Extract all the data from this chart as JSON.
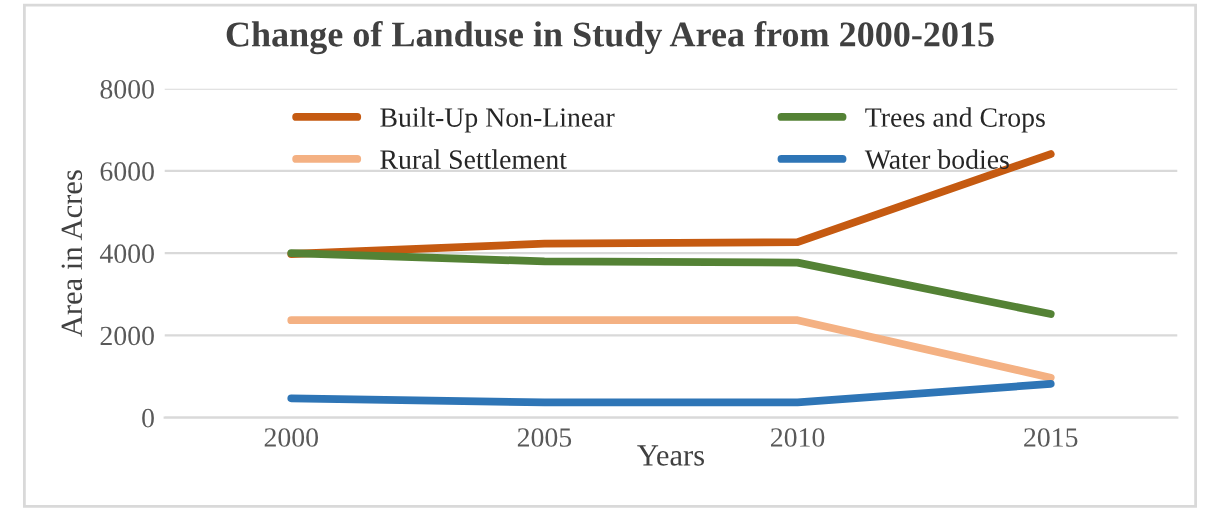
{
  "chart_data": {
    "type": "line",
    "title": "Change of Landuse in Study Area from 2000-2015",
    "xlabel": "Years",
    "ylabel": "Area in Acres",
    "categories": [
      "2000",
      "2005",
      "2010",
      "2015"
    ],
    "series": [
      {
        "name": "Built-Up Non-Linear",
        "color": "#c55a11",
        "values": [
          3980,
          4230,
          4270,
          6410
        ]
      },
      {
        "name": "Rural Settlement",
        "color": "#f4b183",
        "values": [
          2370,
          2370,
          2370,
          970
        ]
      },
      {
        "name": "Trees and Crops",
        "color": "#548235",
        "values": [
          4000,
          3800,
          3770,
          2520
        ]
      },
      {
        "name": "Water bodies",
        "color": "#2e75b6",
        "values": [
          470,
          370,
          370,
          820
        ]
      }
    ],
    "ylim": [
      0,
      8000
    ],
    "yticks": [
      0,
      2000,
      4000,
      6000,
      8000
    ],
    "grid": "y",
    "legend": "top",
    "marker": "none",
    "line_style": "solid"
  }
}
